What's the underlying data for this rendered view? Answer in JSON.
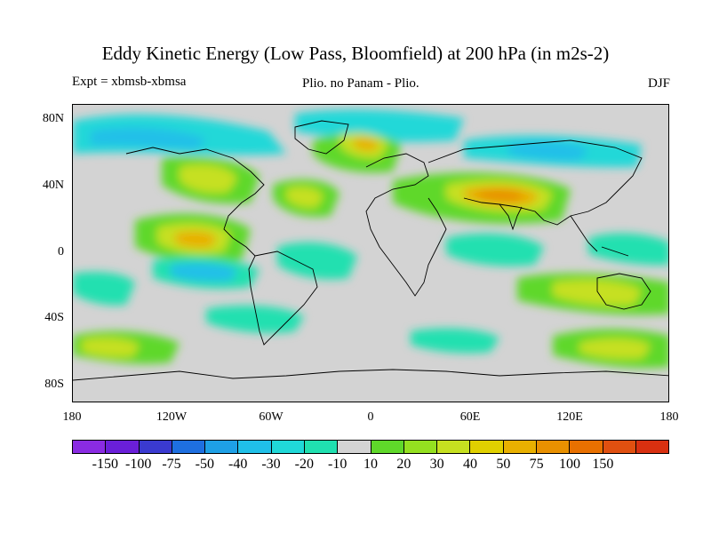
{
  "title": "Eddy Kinetic Energy (Low Pass, Bloomfield) at 200 hPa (in m2s-2)",
  "expt": "Expt = xbmsb-xbmsa",
  "difference": "Plio. no Panam - Plio.",
  "season": "DJF",
  "map": {
    "lat_labels": [
      "80N",
      "40N",
      "0",
      "40S",
      "80S"
    ],
    "lon_labels": [
      "180",
      "120W",
      "60W",
      "0",
      "60E",
      "120E",
      "180"
    ],
    "background_color": "#d3d3d3",
    "coastline_color": "#000000"
  },
  "colorbar": {
    "colors": [
      "#8a2be2",
      "#6a1fd8",
      "#3a3ad0",
      "#1e6fe0",
      "#1ea0e6",
      "#20c0e8",
      "#20d8d8",
      "#20e0b0",
      "#d3d3d3",
      "#5fd82a",
      "#94e020",
      "#c6e020",
      "#e0d000",
      "#e8b000",
      "#e89000",
      "#e87000",
      "#e05010",
      "#d83010"
    ],
    "labels": [
      "-150",
      "-100",
      "-75",
      "-50",
      "-40",
      "-30",
      "-20",
      "-10",
      "10",
      "20",
      "30",
      "40",
      "50",
      "75",
      "100",
      "150"
    ]
  }
}
